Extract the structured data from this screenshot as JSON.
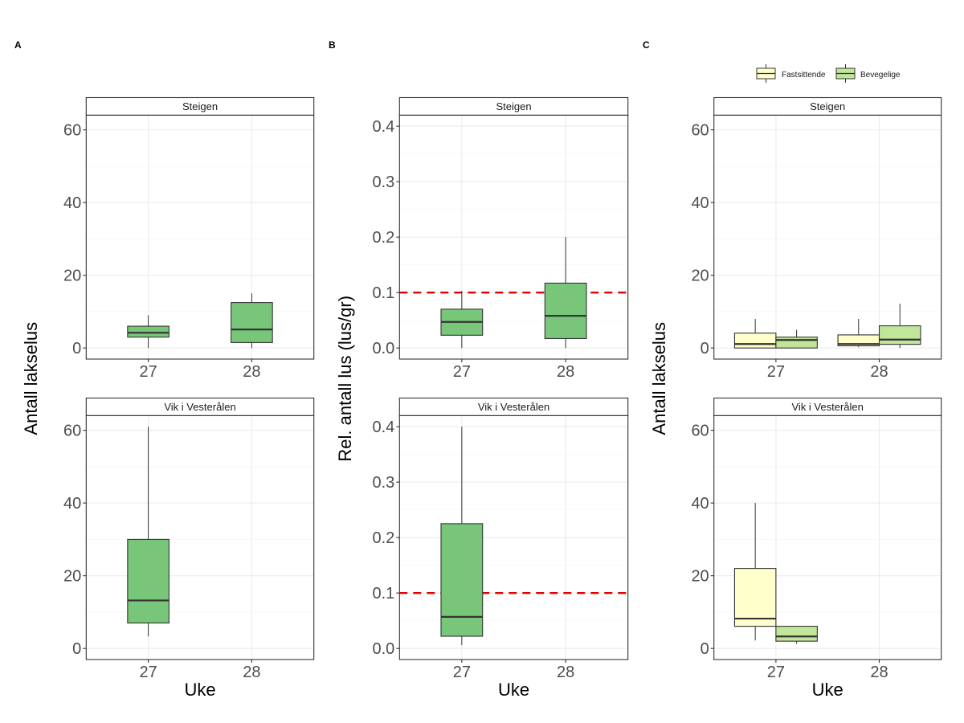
{
  "figure": {
    "panel_tags": [
      "A",
      "B",
      "C"
    ],
    "colors": {
      "green": "#78C679",
      "fastsittende": "#FFFFCC",
      "bevegelige": "#C2E699",
      "threshold": "#E00000",
      "box_outline": "#333333",
      "grid": "#EBEBEB",
      "tick_text": "#4D4D4D"
    }
  },
  "chart_data": [
    {
      "id": "A",
      "type": "boxplot",
      "tag": "A",
      "ylabel": "Antall lakselus",
      "xlabel": "Uke",
      "categories": [
        "27",
        "28"
      ],
      "ylim": [
        -3.05,
        64.05
      ],
      "yticks": [
        0,
        20,
        40,
        60
      ],
      "ytick_labels": [
        "0",
        "20",
        "40",
        "60"
      ],
      "grid": true,
      "facets": [
        {
          "strip": "Steigen",
          "series": [
            {
              "name": "Antall",
              "color": "#78C679",
              "boxes": [
                {
                  "x": "27",
                  "lower": 0,
                  "q1": 3,
                  "median": 4.2,
                  "q3": 6,
                  "upper": 9
                },
                {
                  "x": "28",
                  "lower": 0,
                  "q1": 1.5,
                  "median": 5.1,
                  "q3": 12.5,
                  "upper": 15
                }
              ]
            }
          ]
        },
        {
          "strip": "Vik i Vesterålen",
          "series": [
            {
              "name": "Antall",
              "color": "#78C679",
              "boxes": [
                {
                  "x": "27",
                  "lower": 3.3,
                  "q1": 7,
                  "median": 13.2,
                  "q3": 30,
                  "upper": 61
                }
              ]
            }
          ]
        }
      ]
    },
    {
      "id": "B",
      "type": "boxplot",
      "tag": "B",
      "ylabel": "Rel. antall lus (lus/gr)",
      "xlabel": "Uke",
      "categories": [
        "27",
        "28"
      ],
      "ylim": [
        -0.02,
        0.42
      ],
      "yticks": [
        0,
        0.1,
        0.2,
        0.3,
        0.4
      ],
      "ytick_labels": [
        "0.0",
        "0.1",
        "0.2",
        "0.3",
        "0.4"
      ],
      "grid": true,
      "reference_line": {
        "y": 0.1,
        "style": "dashed",
        "color": "#E00000"
      },
      "facets": [
        {
          "strip": "Steigen",
          "series": [
            {
              "name": "Rel. antall",
              "color": "#78C679",
              "boxes": [
                {
                  "x": "27",
                  "lower": 0,
                  "q1": 0.023,
                  "median": 0.047,
                  "q3": 0.07,
                  "upper": 0.103
                },
                {
                  "x": "28",
                  "lower": 0,
                  "q1": 0.017,
                  "median": 0.058,
                  "q3": 0.117,
                  "upper": 0.2
                }
              ]
            }
          ]
        },
        {
          "strip": "Vik i Vesterålen",
          "series": [
            {
              "name": "Rel. antall",
              "color": "#78C679",
              "boxes": [
                {
                  "x": "27",
                  "lower": 0.006,
                  "q1": 0.022,
                  "median": 0.057,
                  "q3": 0.225,
                  "upper": 0.4
                }
              ]
            }
          ]
        }
      ]
    },
    {
      "id": "C",
      "type": "boxplot",
      "tag": "C",
      "ylabel": "Antall lakselus",
      "xlabel": "Uke",
      "categories": [
        "27",
        "28"
      ],
      "ylim": [
        -3.05,
        64.05
      ],
      "yticks": [
        0,
        20,
        40,
        60
      ],
      "ytick_labels": [
        "0",
        "20",
        "40",
        "60"
      ],
      "grid": true,
      "legend": {
        "position": "top-right",
        "entries": [
          {
            "label": "Fastsittende",
            "color": "#FFFFCC"
          },
          {
            "label": "Bevegelige",
            "color": "#C2E699"
          }
        ]
      },
      "facets": [
        {
          "strip": "Steigen",
          "series": [
            {
              "name": "Fastsittende",
              "color": "#FFFFCC",
              "boxes": [
                {
                  "x": "27",
                  "lower": 0,
                  "q1": 0,
                  "median": 1.1,
                  "q3": 4.1,
                  "upper": 8
                },
                {
                  "x": "28",
                  "lower": 0.2,
                  "q1": 0.6,
                  "median": 1.1,
                  "q3": 3.6,
                  "upper": 8
                }
              ]
            },
            {
              "name": "Bevegelige",
              "color": "#C2E699",
              "boxes": [
                {
                  "x": "27",
                  "lower": 0,
                  "q1": 0,
                  "median": 2.2,
                  "q3": 3,
                  "upper": 5
                },
                {
                  "x": "28",
                  "lower": 0,
                  "q1": 1,
                  "median": 2.3,
                  "q3": 6.1,
                  "upper": 12.2
                }
              ]
            }
          ]
        },
        {
          "strip": "Vik i Vesterålen",
          "series": [
            {
              "name": "Fastsittende",
              "color": "#FFFFCC",
              "boxes": [
                {
                  "x": "27",
                  "lower": 2.2,
                  "q1": 6.1,
                  "median": 8.2,
                  "q3": 22,
                  "upper": 40
                }
              ]
            },
            {
              "name": "Bevegelige",
              "color": "#C2E699",
              "boxes": [
                {
                  "x": "27",
                  "lower": 1.3,
                  "q1": 2,
                  "median": 3.3,
                  "q3": 6.1,
                  "upper": 6.1
                }
              ]
            }
          ]
        }
      ]
    }
  ]
}
